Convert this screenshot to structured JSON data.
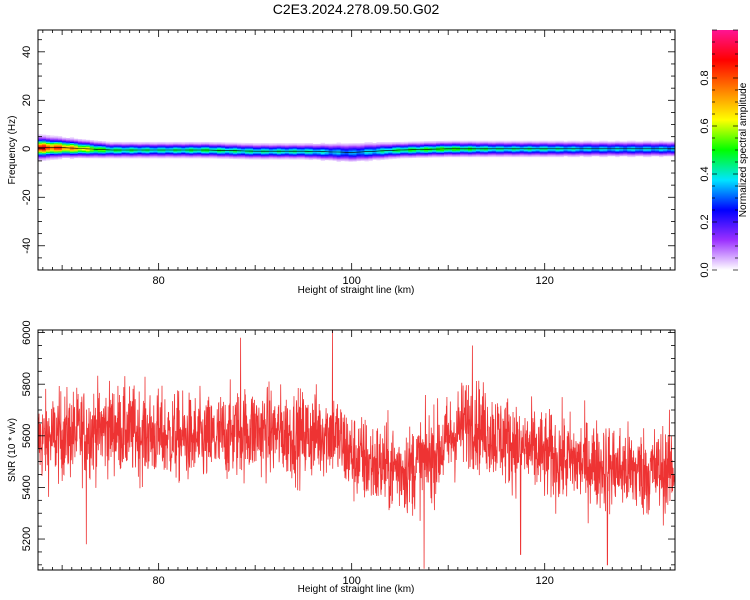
{
  "title": "C2E3.2024.278.09.50.G02",
  "chart_data": [
    {
      "type": "heatmap",
      "xlabel": "Height of straight line (km)",
      "ylabel": "Frequency (Hz)",
      "xlim": [
        67.5,
        133.5
      ],
      "ylim": [
        -50,
        49
      ],
      "x_ticks": [
        "80",
        "100",
        "120"
      ],
      "x_tick_values": [
        80,
        100,
        120
      ],
      "y_ticks": [
        "40",
        "20",
        "0",
        "-20",
        "-40"
      ],
      "y_tick_values": [
        40,
        20,
        0,
        -20,
        -40
      ],
      "grid": false,
      "description": "Narrow band of normalized spectral amplitude centred at 0 Hz across all heights",
      "band": {
        "x": [
          67.5,
          70,
          75,
          80,
          85,
          90,
          95,
          100,
          105,
          110,
          115,
          120,
          125,
          130,
          133.5
        ],
        "center_hz": [
          0.5,
          0.5,
          -0.5,
          -0.5,
          -0.5,
          -1,
          -1,
          -1.5,
          -0.5,
          0,
          0,
          0,
          0,
          0,
          0
        ],
        "half_width_hz": [
          3,
          2.5,
          2,
          2,
          2,
          2,
          2,
          2.5,
          2,
          2,
          2,
          2,
          2,
          2,
          2
        ],
        "peak_amplitude": [
          0.95,
          0.85,
          0.5,
          0.45,
          0.5,
          0.45,
          0.45,
          0.35,
          0.5,
          0.55,
          0.45,
          0.45,
          0.4,
          0.4,
          0.4
        ]
      },
      "colorbar": {
        "label": "Normalized spectral amplitude",
        "range": [
          0,
          1
        ],
        "ticks": [
          "0.0",
          "0.2",
          "0.4",
          "0.6",
          "0.8"
        ],
        "tick_values": [
          0,
          0.2,
          0.4,
          0.6,
          0.8
        ],
        "colors": [
          "#ffffff",
          "#9b30ff",
          "#0000ff",
          "#00e5ff",
          "#00ff00",
          "#ffff00",
          "#ff8000",
          "#ff0000",
          "#ff1493"
        ]
      }
    },
    {
      "type": "line",
      "xlabel": "Height of straight line (km)",
      "ylabel": "SNR (10 * v/v)",
      "xlim": [
        67.5,
        133.5
      ],
      "ylim": [
        5080,
        6010
      ],
      "x_ticks": [
        "80",
        "100",
        "120"
      ],
      "x_tick_values": [
        80,
        100,
        120
      ],
      "y_ticks": [
        "6000",
        "5800",
        "5600",
        "5400",
        "5200"
      ],
      "y_tick_values": [
        6000,
        5800,
        5600,
        5400,
        5200
      ],
      "grid": false,
      "line_color": "#ee3333",
      "n_samples": 2400,
      "trend": {
        "x": [
          67.5,
          70,
          75,
          80,
          85,
          88,
          90,
          95,
          98,
          100,
          103,
          106,
          109,
          112,
          115,
          120,
          125,
          130,
          133.5
        ],
        "mean": [
          5580,
          5600,
          5630,
          5600,
          5580,
          5610,
          5620,
          5600,
          5620,
          5520,
          5480,
          5470,
          5540,
          5660,
          5600,
          5520,
          5490,
          5460,
          5470
        ]
      },
      "amplitude": 140,
      "peaks": [
        {
          "x": 98,
          "y": 6010
        },
        {
          "x": 88.5,
          "y": 5980
        },
        {
          "x": 112.5,
          "y": 5950
        }
      ],
      "dips": [
        {
          "x": 107.5,
          "y": 5085
        },
        {
          "x": 126.5,
          "y": 5100
        },
        {
          "x": 117.5,
          "y": 5140
        },
        {
          "x": 72.5,
          "y": 5180
        }
      ]
    }
  ]
}
